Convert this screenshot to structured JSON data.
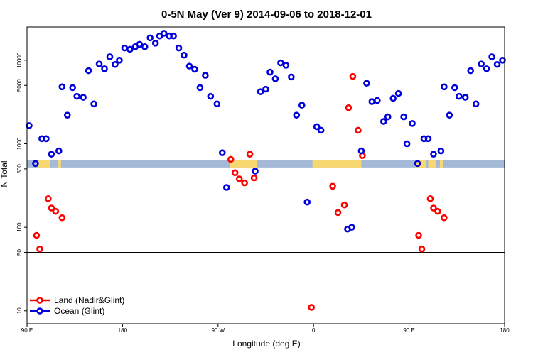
{
  "chart_data": {
    "type": "scatter",
    "title": "0-5N May (Ver 9)   2014-09-06 to 2018-12-01",
    "xlabel": "Longitude (deg E)",
    "ylabel": "N Total",
    "xlim": [
      90,
      540
    ],
    "ylim_log": [
      7,
      25000
    ],
    "y_scale": "log",
    "x_ticks": [
      {
        "value": 90,
        "label": "90 E"
      },
      {
        "value": 180,
        "label": "180"
      },
      {
        "value": 270,
        "label": "90 W"
      },
      {
        "value": 360,
        "label": "0"
      },
      {
        "value": 450,
        "label": "90 E"
      },
      {
        "value": 540,
        "label": "180"
      }
    ],
    "y_ticks": [
      {
        "value": 10,
        "label": "10"
      },
      {
        "value": 50,
        "label": "50"
      },
      {
        "value": 100,
        "label": "100"
      },
      {
        "value": 500,
        "label": "500"
      },
      {
        "value": 1000,
        "label": "1000"
      },
      {
        "value": 5000,
        "label": "5000"
      },
      {
        "value": 10000,
        "label": "10000"
      }
    ],
    "reference_line": 50,
    "legend_position": "bottom-left",
    "series": [
      {
        "name": "Land (Nadir&Glint)",
        "color": "#ff0000",
        "points": [
          [
            99,
            80
          ],
          [
            102,
            55
          ],
          [
            110,
            220
          ],
          [
            113,
            170
          ],
          [
            117,
            155
          ],
          [
            123,
            130
          ],
          [
            282,
            650
          ],
          [
            286,
            450
          ],
          [
            290,
            380
          ],
          [
            295,
            340
          ],
          [
            300,
            750
          ],
          [
            304,
            390
          ],
          [
            358,
            11
          ],
          [
            378,
            310
          ],
          [
            383,
            150
          ],
          [
            389,
            185
          ],
          [
            393,
            2700
          ],
          [
            397,
            6400
          ],
          [
            402,
            1450
          ],
          [
            406,
            720
          ],
          [
            459,
            80
          ],
          [
            462,
            55
          ],
          [
            470,
            220
          ],
          [
            473,
            170
          ],
          [
            477,
            155
          ],
          [
            483,
            130
          ]
        ]
      },
      {
        "name": "Ocean (Glint)",
        "color": "#0000dd",
        "points": [
          [
            92,
            1650
          ],
          [
            98,
            580
          ],
          [
            104,
            1150
          ],
          [
            108,
            1150
          ],
          [
            113,
            750
          ],
          [
            120,
            820
          ],
          [
            123,
            4800
          ],
          [
            128,
            2200
          ],
          [
            133,
            4700
          ],
          [
            137,
            3700
          ],
          [
            143,
            3600
          ],
          [
            148,
            7500
          ],
          [
            153,
            3000
          ],
          [
            158,
            9000
          ],
          [
            163,
            7900
          ],
          [
            168,
            11000
          ],
          [
            173,
            8900
          ],
          [
            177,
            10000
          ],
          [
            182,
            14000
          ],
          [
            187,
            13500
          ],
          [
            192,
            14500
          ],
          [
            196,
            15500
          ],
          [
            201,
            14500
          ],
          [
            206,
            18500
          ],
          [
            211,
            16000
          ],
          [
            215,
            19500
          ],
          [
            219,
            21000
          ],
          [
            224,
            19500
          ],
          [
            228,
            19500
          ],
          [
            233,
            14000
          ],
          [
            238,
            11500
          ],
          [
            243,
            8500
          ],
          [
            248,
            7800
          ],
          [
            253,
            4700
          ],
          [
            258,
            6600
          ],
          [
            263,
            3700
          ],
          [
            269,
            3000
          ],
          [
            274,
            780
          ],
          [
            278,
            300
          ],
          [
            305,
            470
          ],
          [
            310,
            4200
          ],
          [
            315,
            4500
          ],
          [
            319,
            7200
          ],
          [
            324,
            6000
          ],
          [
            329,
            9300
          ],
          [
            334,
            8700
          ],
          [
            339,
            6300
          ],
          [
            344,
            2200
          ],
          [
            349,
            2900
          ],
          [
            354,
            200
          ],
          [
            363,
            1600
          ],
          [
            367,
            1450
          ],
          [
            392,
            95
          ],
          [
            396,
            100
          ],
          [
            405,
            820
          ],
          [
            410,
            5300
          ],
          [
            415,
            3200
          ],
          [
            420,
            3300
          ],
          [
            426,
            1850
          ],
          [
            430,
            2100
          ],
          [
            435,
            3500
          ],
          [
            440,
            4000
          ],
          [
            445,
            2100
          ],
          [
            448,
            1000
          ],
          [
            453,
            1750
          ],
          [
            458,
            580
          ],
          [
            464,
            1150
          ],
          [
            468,
            1150
          ],
          [
            473,
            750
          ],
          [
            480,
            820
          ],
          [
            483,
            4800
          ],
          [
            488,
            2200
          ],
          [
            493,
            4700
          ],
          [
            497,
            3700
          ],
          [
            503,
            3600
          ],
          [
            508,
            7500
          ],
          [
            513,
            3000
          ],
          [
            518,
            9000
          ],
          [
            523,
            7900
          ],
          [
            528,
            11000
          ],
          [
            533,
            8900
          ],
          [
            538,
            10000
          ]
        ]
      }
    ]
  }
}
